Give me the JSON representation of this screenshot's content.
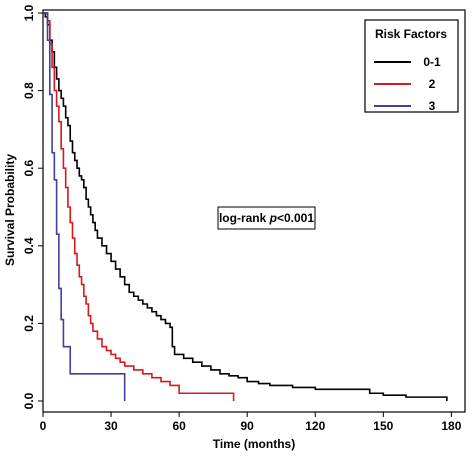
{
  "chart_data": {
    "type": "line",
    "subtype": "step",
    "title": "",
    "xlabel": "Time (months)",
    "ylabel": "Survival Probability",
    "xlim": [
      0,
      186
    ],
    "ylim": [
      0,
      1
    ],
    "xticks": [
      0,
      30,
      60,
      90,
      120,
      150,
      180
    ],
    "yticks": [
      0.0,
      0.2,
      0.4,
      0.6,
      0.8,
      1.0
    ],
    "ytick_labels": [
      "0.0",
      "0.2",
      "0.4",
      "0.6",
      "0.8",
      "1.0"
    ],
    "grid": false,
    "legend": {
      "title": "Risk Factors",
      "position": "top-right"
    },
    "annotation": {
      "prefix": "log-rank ",
      "italic": "p",
      "suffix": "<0.001"
    },
    "series": [
      {
        "name": "0-1",
        "color": "#000000",
        "x": [
          0,
          1,
          2,
          3,
          4,
          5,
          6,
          7,
          8,
          9,
          10,
          11,
          12,
          13,
          14,
          15,
          16,
          17,
          18,
          19,
          20,
          21,
          22,
          23,
          24,
          26,
          28,
          30,
          32,
          34,
          36,
          38,
          40,
          42,
          44,
          46,
          48,
          50,
          52,
          54,
          56,
          57,
          58,
          62,
          66,
          70,
          74,
          78,
          82,
          86,
          90,
          95,
          100,
          110,
          120,
          130,
          144,
          150,
          160,
          170,
          178
        ],
        "y": [
          1.0,
          0.99,
          0.97,
          0.93,
          0.9,
          0.86,
          0.83,
          0.8,
          0.78,
          0.76,
          0.73,
          0.71,
          0.67,
          0.64,
          0.62,
          0.6,
          0.58,
          0.57,
          0.55,
          0.52,
          0.5,
          0.48,
          0.46,
          0.44,
          0.42,
          0.4,
          0.38,
          0.36,
          0.34,
          0.32,
          0.3,
          0.28,
          0.27,
          0.26,
          0.25,
          0.24,
          0.23,
          0.22,
          0.21,
          0.2,
          0.19,
          0.14,
          0.12,
          0.11,
          0.1,
          0.09,
          0.08,
          0.07,
          0.065,
          0.06,
          0.05,
          0.045,
          0.04,
          0.035,
          0.03,
          0.03,
          0.02,
          0.015,
          0.01,
          0.01,
          0.0
        ]
      },
      {
        "name": "2",
        "color": "#d7191c",
        "x": [
          0,
          2,
          3,
          4,
          5,
          6,
          7,
          8,
          9,
          10,
          11,
          12,
          13,
          14,
          15,
          16,
          17,
          18,
          19,
          20,
          21,
          22,
          24,
          26,
          28,
          30,
          32,
          34,
          36,
          40,
          44,
          48,
          52,
          56,
          60,
          70,
          84
        ],
        "y": [
          1.0,
          0.98,
          0.92,
          0.86,
          0.8,
          0.76,
          0.72,
          0.65,
          0.6,
          0.55,
          0.5,
          0.46,
          0.42,
          0.38,
          0.35,
          0.32,
          0.3,
          0.27,
          0.25,
          0.22,
          0.2,
          0.18,
          0.16,
          0.14,
          0.13,
          0.12,
          0.11,
          0.1,
          0.09,
          0.08,
          0.07,
          0.06,
          0.05,
          0.04,
          0.02,
          0.02,
          0.0
        ]
      },
      {
        "name": "3",
        "color": "#3f3f9f",
        "x": [
          0,
          2,
          3,
          4,
          5,
          6,
          7,
          8,
          9,
          12,
          18,
          30,
          36
        ],
        "y": [
          1.0,
          0.93,
          0.79,
          0.64,
          0.57,
          0.43,
          0.29,
          0.21,
          0.14,
          0.07,
          0.07,
          0.07,
          0.0
        ]
      }
    ]
  }
}
